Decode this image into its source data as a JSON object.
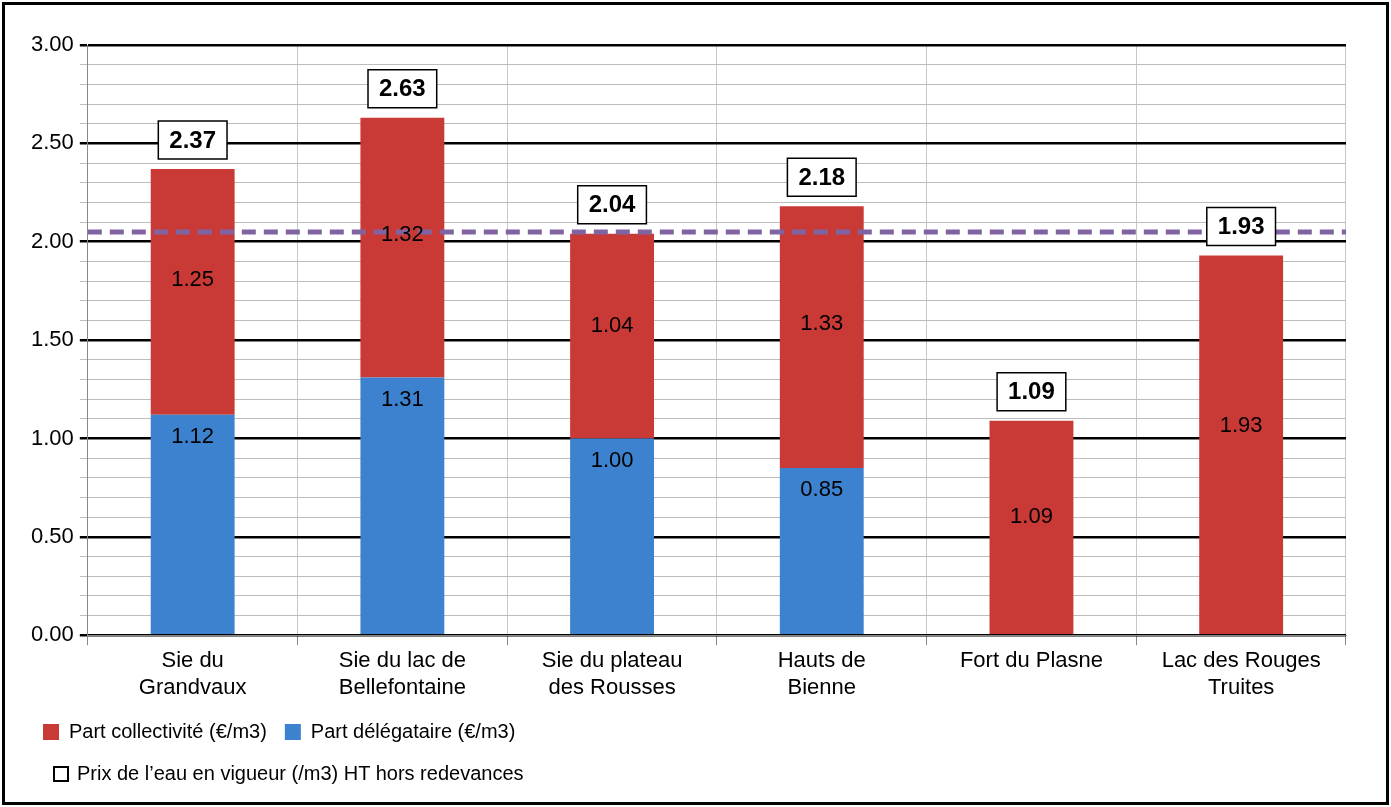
{
  "chart_data": {
    "type": "bar",
    "stacked": true,
    "categories": [
      "Sie du Grandvaux",
      "Sie du lac de Bellefontaine",
      "Sie du plateau des Rousses",
      "Hauts de Bienne",
      "Fort du Plasne",
      "Lac des Rouges Truites"
    ],
    "series": [
      {
        "name": "Part délégataire (€/m3)",
        "color": "#3d82cf",
        "values": [
          1.12,
          1.31,
          1.0,
          0.85,
          null,
          null
        ],
        "value_labels": [
          "1.12",
          "1.31",
          "1.00",
          "0.85",
          null,
          null
        ]
      },
      {
        "name": "Part collectivité (€/m3)",
        "color": "#c93a37",
        "values": [
          1.25,
          1.32,
          1.04,
          1.33,
          1.09,
          1.93
        ],
        "value_labels": [
          "1.25",
          "1.32",
          "1.04",
          "1.33",
          "1.09",
          "1.93"
        ]
      }
    ],
    "totals": [
      "2.37",
      "2.63",
      "2.04",
      "2.18",
      "1.09",
      "1.93"
    ],
    "annotations": [
      "Prix de l’eau en vigueur (/m3) HT hors redevances"
    ],
    "ref_lines": [
      {
        "axis": "y",
        "value": 2.05,
        "color": "#8064a2",
        "line_style": "dashed"
      }
    ],
    "ylim": [
      0,
      3
    ],
    "yticks": [
      {
        "value": 0,
        "label": "0.00"
      },
      {
        "value": 0.1,
        "label": null
      },
      {
        "value": 0.2,
        "label": null
      },
      {
        "value": 0.3,
        "label": null
      },
      {
        "value": 0.4,
        "label": null
      },
      {
        "value": 0.5,
        "label": "0.50"
      },
      {
        "value": 0.6,
        "label": null
      },
      {
        "value": 0.7,
        "label": null
      },
      {
        "value": 0.8,
        "label": null
      },
      {
        "value": 0.9,
        "label": null
      },
      {
        "value": 1,
        "label": "1.00"
      },
      {
        "value": 1.1,
        "label": null
      },
      {
        "value": 1.2,
        "label": null
      },
      {
        "value": 1.3,
        "label": null
      },
      {
        "value": 1.4,
        "label": null
      },
      {
        "value": 1.5,
        "label": "1.50"
      },
      {
        "value": 1.6,
        "label": null
      },
      {
        "value": 1.7,
        "label": null
      },
      {
        "value": 1.8,
        "label": null
      },
      {
        "value": 1.9,
        "label": null
      },
      {
        "value": 2,
        "label": "2.00"
      },
      {
        "value": 2.1,
        "label": null
      },
      {
        "value": 2.2,
        "label": null
      },
      {
        "value": 2.3,
        "label": null
      },
      {
        "value": 2.4,
        "label": null
      },
      {
        "value": 2.5,
        "label": "2.50"
      },
      {
        "value": 2.6,
        "label": null
      },
      {
        "value": 2.7,
        "label": null
      },
      {
        "value": 2.8,
        "label": null
      },
      {
        "value": 2.9,
        "label": null
      },
      {
        "value": 3,
        "label": "3.00"
      }
    ],
    "grid": true,
    "legend": "bottom left"
  }
}
